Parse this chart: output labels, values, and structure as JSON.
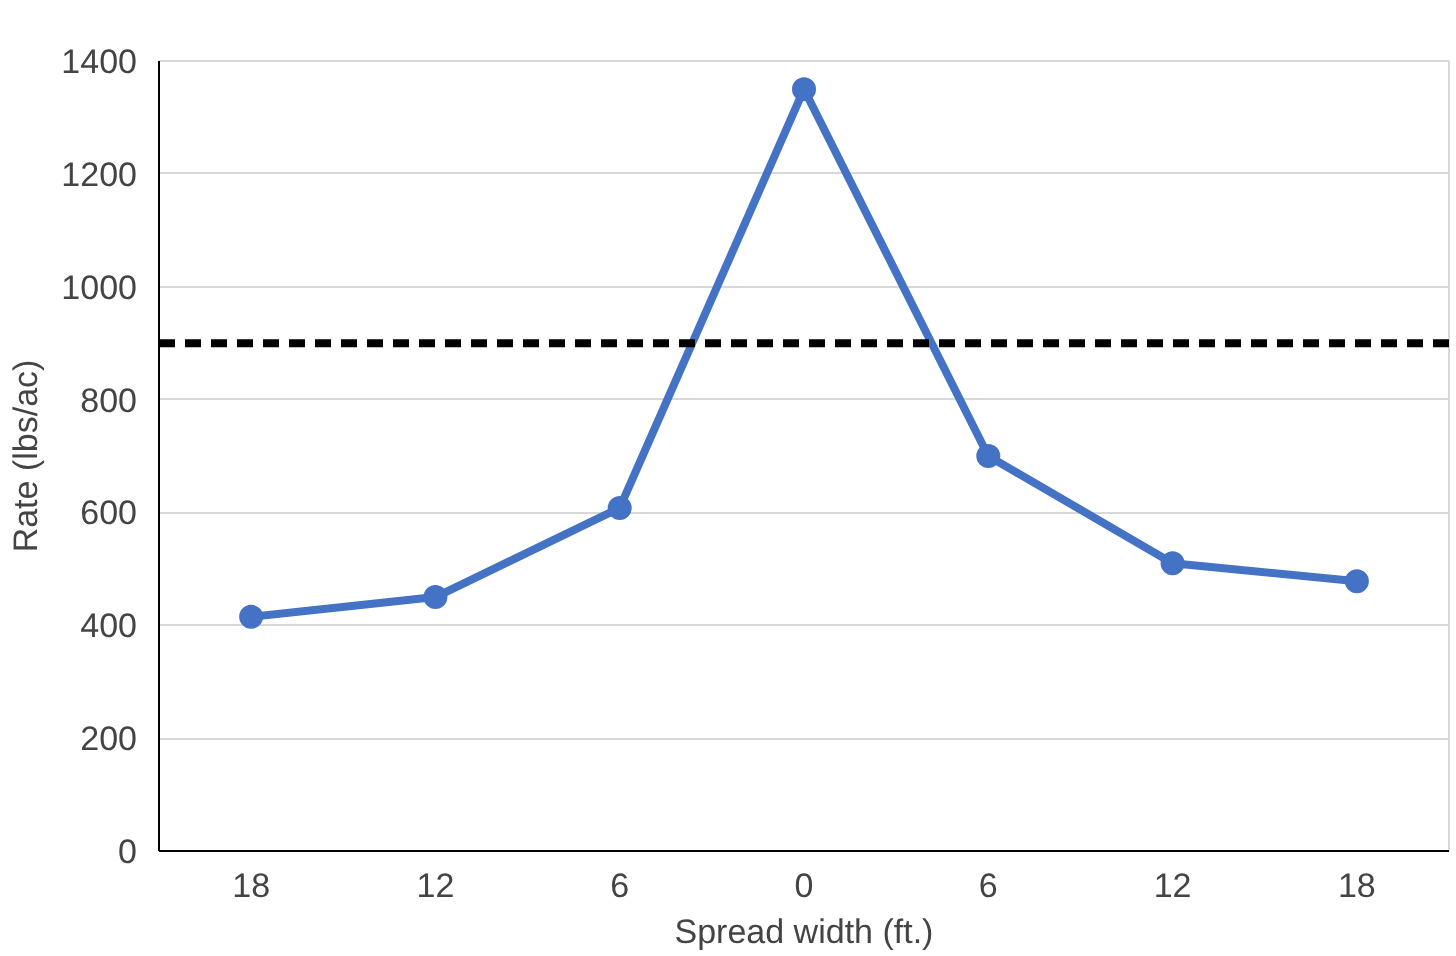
{
  "chart_data": {
    "type": "line",
    "xlabel": "Spread width (ft.)",
    "ylabel": "Rate (lbs/ac)",
    "categories": [
      "18",
      "12",
      "6",
      "0",
      "6",
      "12",
      "18"
    ],
    "series": [
      {
        "color": "#4472c4",
        "values": [
          415,
          450,
          608,
          1350,
          700,
          510,
          478
        ]
      }
    ],
    "ylim": [
      0,
      1400
    ],
    "yticks": [
      0,
      200,
      400,
      600,
      800,
      1000,
      1200,
      1400
    ],
    "ref_lines": [
      {
        "axis": "y",
        "value": 900,
        "color": "#000000",
        "line_style": "dashed"
      }
    ],
    "grid": "y",
    "marker": "circle",
    "line_style": "solid"
  }
}
